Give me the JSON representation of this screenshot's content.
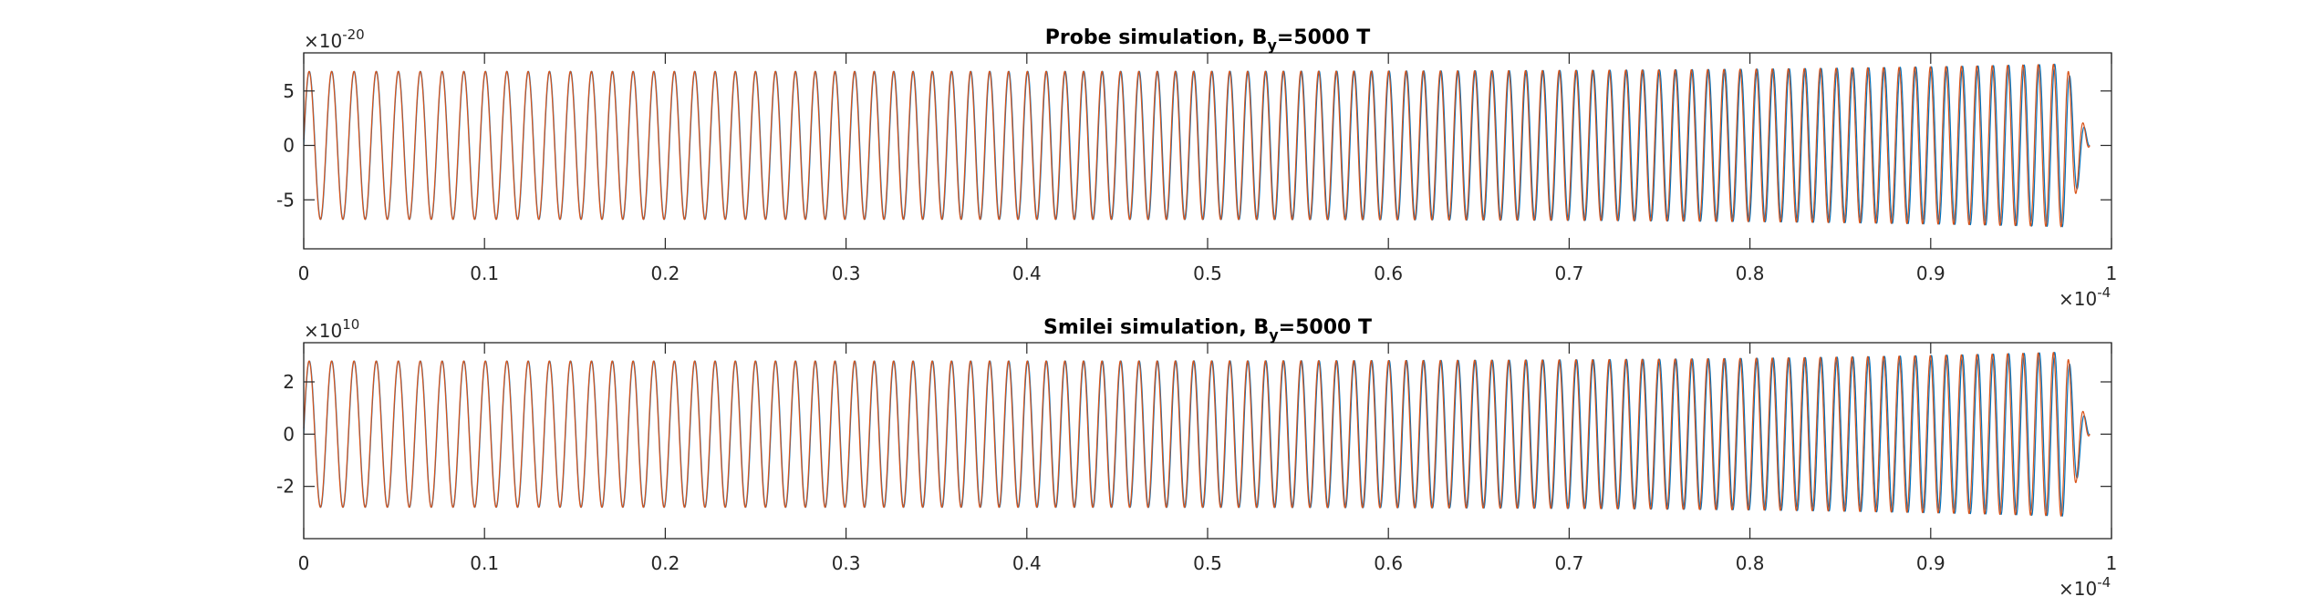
{
  "chart_data": [
    {
      "type": "line",
      "title": "Probe simulation, B",
      "title_sub": "y",
      "title_tail": "=5000 T",
      "y_exponent_base": "×10",
      "y_exponent_power": "-20",
      "x_exponent_base": "×10",
      "x_exponent_power": "-4",
      "xlim": [
        0,
        1
      ],
      "ylim": [
        -9.5,
        8.5
      ],
      "x_ticks": [
        0,
        0.1,
        0.2,
        0.3,
        0.4,
        0.5,
        0.6,
        0.7,
        0.8,
        0.9,
        1
      ],
      "x_tick_labels": [
        "0",
        "0.1",
        "0.2",
        "0.3",
        "0.4",
        "0.5",
        "0.6",
        "0.7",
        "0.8",
        "0.9",
        "1"
      ],
      "y_ticks": [
        -5,
        0,
        5
      ],
      "y_tick_labels": [
        "-5",
        "0",
        "5"
      ],
      "grid": false,
      "signal": {
        "amplitude": 6.8,
        "amplitude_end": 7.6,
        "cycles_per_unit_start": 80,
        "cycles_per_unit_end": 120,
        "x_end": 0.988
      },
      "series": [
        {
          "color": "#0072BD",
          "phase_shift": 0.0
        },
        {
          "color": "#D95319",
          "phase_shift": 0.08
        }
      ]
    },
    {
      "type": "line",
      "title": "Smilei simulation, B",
      "title_sub": "y",
      "title_tail": "=5000 T",
      "y_exponent_base": "×10",
      "y_exponent_power": "10",
      "x_exponent_base": "×10",
      "x_exponent_power": "-4",
      "xlim": [
        0,
        1
      ],
      "ylim": [
        -4.0,
        3.5
      ],
      "x_ticks": [
        0,
        0.1,
        0.2,
        0.3,
        0.4,
        0.5,
        0.6,
        0.7,
        0.8,
        0.9,
        1
      ],
      "x_tick_labels": [
        "0",
        "0.1",
        "0.2",
        "0.3",
        "0.4",
        "0.5",
        "0.6",
        "0.7",
        "0.8",
        "0.9",
        "1"
      ],
      "y_ticks": [
        -2,
        0,
        2
      ],
      "y_tick_labels": [
        "-2",
        "0",
        "2"
      ],
      "grid": false,
      "signal": {
        "amplitude": 2.8,
        "amplitude_end": 3.2,
        "cycles_per_unit_start": 80,
        "cycles_per_unit_end": 120,
        "x_end": 0.988
      },
      "series": [
        {
          "color": "#0072BD",
          "phase_shift": 0.0
        },
        {
          "color": "#D95319",
          "phase_shift": 0.08
        }
      ]
    }
  ]
}
